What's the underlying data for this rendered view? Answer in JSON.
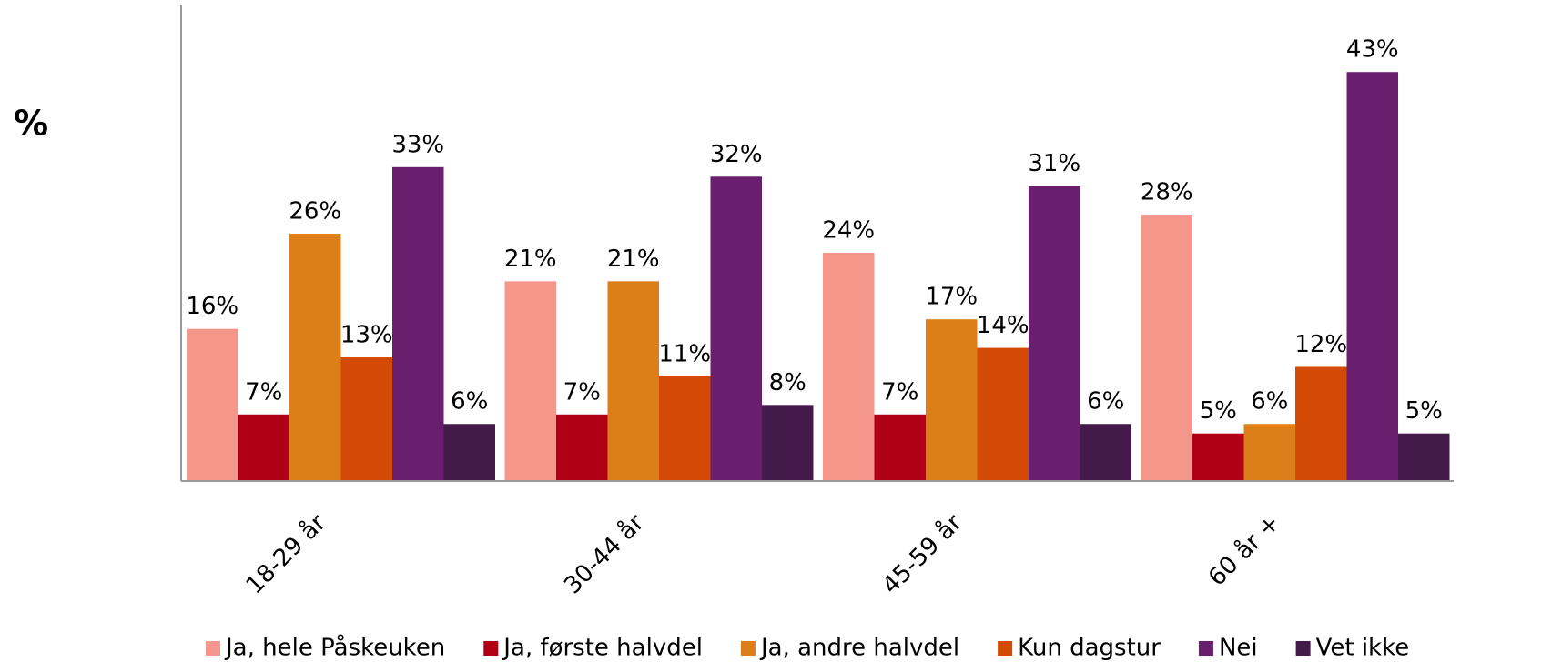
{
  "chart_data": {
    "type": "bar",
    "y_label": "%",
    "categories": [
      "18-29 år",
      "30-44 år",
      "45-59 år",
      "60 år +"
    ],
    "series": [
      {
        "name": "Ja, hele Påskeuken",
        "color": "#f4968a",
        "values": [
          16,
          21,
          24,
          28
        ],
        "value_labels": [
          "16%",
          "21%",
          "24%",
          "28%"
        ]
      },
      {
        "name": "Ja, første halvdel",
        "color": "#b00016",
        "values": [
          7,
          7,
          7,
          5
        ],
        "value_labels": [
          "7%",
          "7%",
          "7%",
          "5%"
        ]
      },
      {
        "name": "Ja, andre halvdel",
        "color": "#dc7f1a",
        "values": [
          26,
          21,
          17,
          6
        ],
        "value_labels": [
          "26%",
          "21%",
          "17%",
          "6%"
        ]
      },
      {
        "name": "Kun dagstur",
        "color": "#d34a07",
        "values": [
          13,
          11,
          14,
          12
        ],
        "value_labels": [
          "13%",
          "11%",
          "14%",
          "12%"
        ]
      },
      {
        "name": "Nei",
        "color": "#6a1e6e",
        "values": [
          33,
          32,
          31,
          43
        ],
        "value_labels": [
          "33%",
          "32%",
          "31%",
          "43%"
        ]
      },
      {
        "name": "Vet ikke",
        "color": "#431a4a",
        "values": [
          6,
          8,
          6,
          5
        ],
        "value_labels": [
          "6%",
          "8%",
          "6%",
          "5%"
        ]
      }
    ],
    "ylim": [
      0,
      50
    ],
    "legend": "bottom"
  }
}
